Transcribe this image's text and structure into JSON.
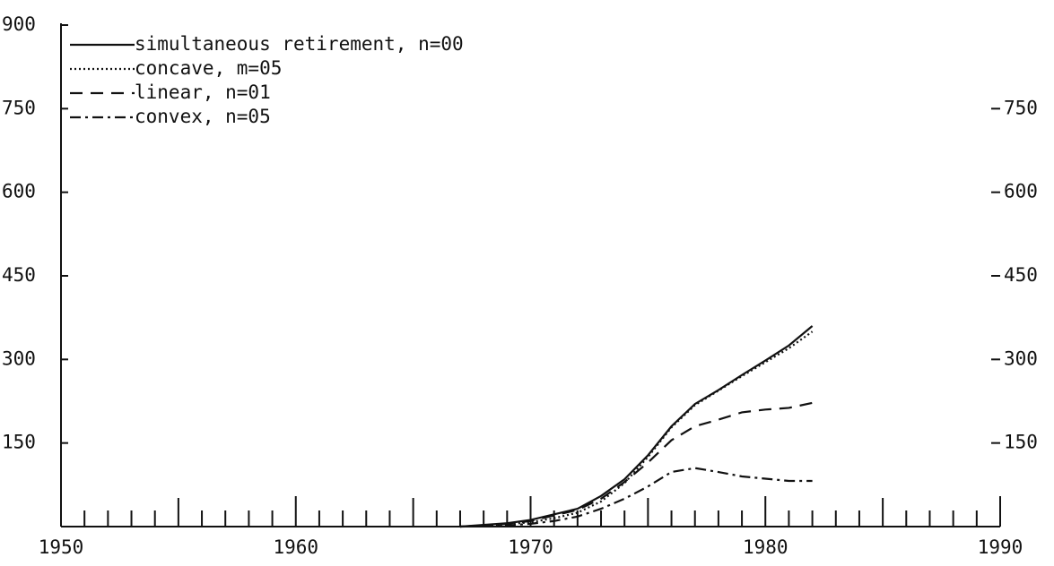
{
  "chart_data": {
    "type": "line",
    "x": [
      1967,
      1968,
      1969,
      1970,
      1971,
      1972,
      1973,
      1974,
      1975,
      1976,
      1977,
      1978,
      1979,
      1980,
      1981,
      1982
    ],
    "series": [
      {
        "name": "simultaneous retirement, n=00",
        "color": "#111111",
        "style": "solid",
        "values": [
          0,
          3,
          6,
          12,
          22,
          32,
          55,
          85,
          128,
          180,
          220,
          245,
          272,
          298,
          325,
          360
        ]
      },
      {
        "name": "concave, m=05",
        "color": "#111111",
        "style": "dotted",
        "values": [
          0,
          2,
          4,
          8,
          15,
          25,
          45,
          78,
          125,
          178,
          218,
          244,
          270,
          295,
          320,
          350
        ]
      },
      {
        "name": "linear, n=01",
        "color": "#111111",
        "style": "dashed",
        "values": [
          0,
          2,
          5,
          10,
          20,
          30,
          50,
          80,
          115,
          155,
          180,
          192,
          205,
          210,
          213,
          222
        ]
      },
      {
        "name": "convex, n=05",
        "color": "#111111",
        "style": "dashdot",
        "values": [
          0,
          1,
          2,
          5,
          10,
          18,
          32,
          50,
          72,
          98,
          105,
          98,
          90,
          86,
          82,
          82
        ]
      }
    ],
    "xlim": [
      1950,
      1990
    ],
    "xticks": [
      1950,
      1960,
      1970,
      1980,
      1990
    ],
    "xminorticks": [
      1951,
      1952,
      1953,
      1954,
      1955,
      1956,
      1957,
      1958,
      1959,
      1961,
      1962,
      1963,
      1964,
      1965,
      1966,
      1967,
      1968,
      1969,
      1971,
      1972,
      1973,
      1974,
      1975,
      1976,
      1977,
      1978,
      1979,
      1981,
      1982,
      1983,
      1984,
      1985,
      1986,
      1987,
      1988,
      1989
    ],
    "ylim": [
      0,
      900
    ],
    "yticks": [
      150,
      300,
      450,
      600,
      750,
      900
    ],
    "y2lim": [
      0,
      900
    ],
    "y2ticks": [
      150,
      300,
      450,
      600,
      750
    ],
    "legend": "upper left"
  }
}
